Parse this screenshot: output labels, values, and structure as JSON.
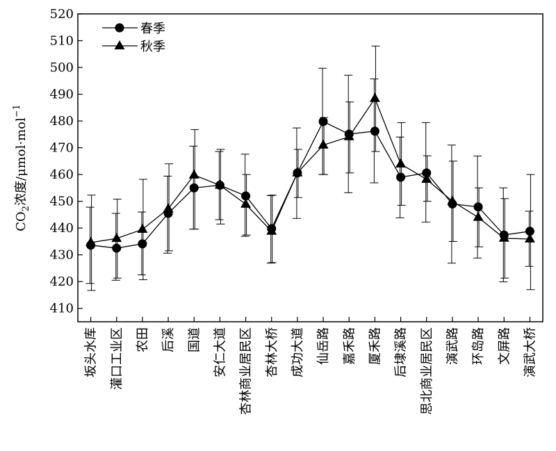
{
  "chart_data": {
    "type": "line",
    "title": "",
    "xlabel": "",
    "ylabel": {
      "prefix": "CO",
      "subscript": "2",
      "text": "浓度/μmol·mol",
      "superscript": "−1"
    },
    "ylim": [
      405,
      520
    ],
    "yticks": [
      410,
      420,
      430,
      440,
      450,
      460,
      470,
      480,
      490,
      500,
      510,
      520
    ],
    "grid": false,
    "legend_position": "top-left",
    "categories": [
      "坂头水库",
      "灌口工业区",
      "农田",
      "后溪",
      "国道",
      "安仁大道",
      "杏林商业居民区",
      "杏林大桥",
      "成功大道",
      "仙岳路",
      "嘉禾路",
      "厦禾路",
      "后埭溪路",
      "思北商业居民区",
      "演武路",
      "环岛路",
      "文屏路",
      "演武大桥"
    ],
    "series": [
      {
        "name": "春季",
        "marker": "circle",
        "values": [
          433.6,
          432.5,
          434.1,
          445.5,
          455.0,
          456.0,
          452.0,
          439.8,
          460.6,
          479.8,
          475.1,
          476.2,
          459.0,
          460.6,
          449.0,
          447.9,
          437.4,
          438.8
        ],
        "err_low": [
          419.3,
          420.5,
          422.5,
          430.6,
          439.6,
          443.1,
          436.9,
          426.9,
          443.6,
          460.0,
          453.2,
          456.9,
          443.8,
          442.2,
          426.9,
          428.8,
          419.9,
          425.7
        ],
        "err_high": [
          447.8,
          445.5,
          446.0,
          459.4,
          470.6,
          468.6,
          467.6,
          452.1,
          477.4,
          499.7,
          497.1,
          495.7,
          474.0,
          479.4,
          471.0,
          466.9,
          455.0,
          446.3
        ]
      },
      {
        "name": "秋季",
        "marker": "triangle",
        "values": [
          434.6,
          436.1,
          439.5,
          447.2,
          459.8,
          456.0,
          448.9,
          438.8,
          460.6,
          471.0,
          474.1,
          488.4,
          463.9,
          458.2,
          450.0,
          444.0,
          436.2,
          435.9
        ],
        "err_low": [
          416.7,
          421.3,
          420.7,
          431.5,
          439.6,
          441.5,
          437.4,
          427.1,
          451.4,
          460.0,
          460.6,
          468.6,
          448.5,
          450.0,
          435.0,
          433.0,
          421.3,
          417.0
        ],
        "err_high": [
          452.3,
          450.8,
          458.2,
          464.0,
          476.8,
          469.4,
          460.0,
          452.3,
          469.4,
          481.3,
          487.1,
          508.0,
          479.4,
          467.0,
          465.0,
          455.0,
          451.0,
          460.0
        ]
      }
    ]
  }
}
